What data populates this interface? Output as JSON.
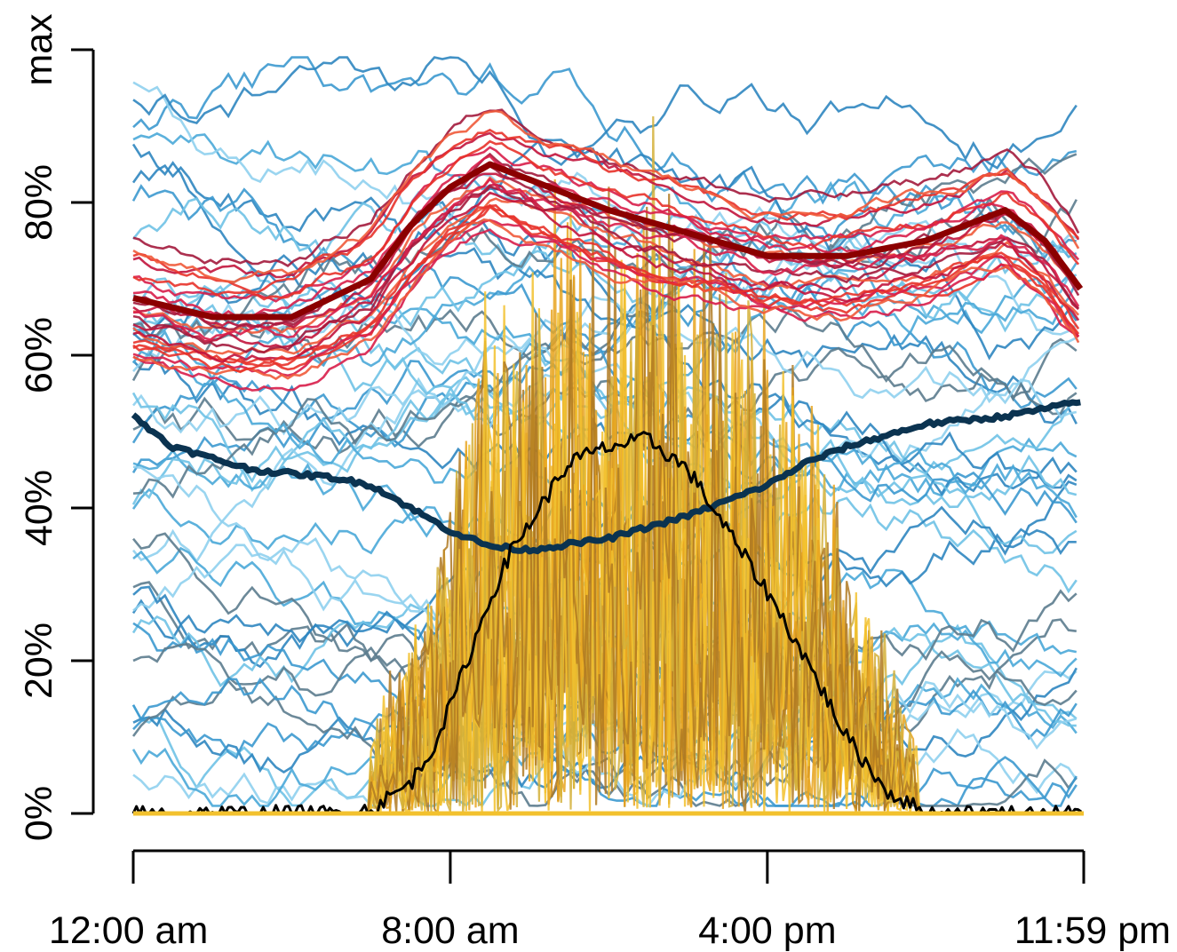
{
  "chart_data": {
    "type": "line",
    "xlim_hours": [
      0,
      23.983
    ],
    "ylim_percent": [
      0,
      100
    ],
    "y_ticks": [
      {
        "value": 0,
        "label": "0%"
      },
      {
        "value": 20,
        "label": "20%"
      },
      {
        "value": 40,
        "label": "40%"
      },
      {
        "value": 60,
        "label": "60%"
      },
      {
        "value": 80,
        "label": "80%"
      },
      {
        "value": 100,
        "label": "max"
      }
    ],
    "x_ticks": [
      {
        "value": 0,
        "label": "12:00 am"
      },
      {
        "value": 8,
        "label": "8:00 am"
      },
      {
        "value": 16,
        "label": "4:00 pm"
      },
      {
        "value": 23.983,
        "label": "11:59 pm"
      }
    ],
    "colors": {
      "red_mean": "#8b0000",
      "blue_mean": "#0b3350",
      "black_mean": "#000000",
      "yellow_group": "#f2c12e",
      "brown_group": "#b07a22",
      "red_group": [
        "#e8322a",
        "#d81e4a",
        "#c2143c",
        "#ef5a3a",
        "#a31a3c"
      ],
      "blue_group": [
        "#4aa8d8",
        "#2f86c0",
        "#6fc2e6",
        "#5c7c8e",
        "#3c99cf",
        "#8fd0ee"
      ]
    },
    "series": [
      {
        "id": "red-mean",
        "x": [
          0,
          2,
          4,
          6,
          7,
          8,
          9,
          10,
          12,
          14,
          16,
          18,
          20,
          21,
          22,
          23,
          24
        ],
        "y": [
          67.5,
          65,
          65,
          70,
          77,
          82,
          85,
          83,
          79,
          76,
          73,
          73,
          75,
          77,
          79,
          75,
          68
        ]
      },
      {
        "id": "blue-mean",
        "x": [
          0,
          1,
          3,
          5,
          6,
          7,
          8,
          9,
          10,
          12,
          14,
          15,
          16,
          17,
          18,
          20,
          22,
          24
        ],
        "y": [
          52,
          48,
          45,
          44,
          43,
          40,
          37,
          35,
          34.5,
          36,
          39,
          41,
          43,
          46,
          48,
          51,
          52,
          54
        ]
      },
      {
        "id": "black-mean",
        "x": [
          0,
          5,
          6,
          7,
          7.5,
          8,
          8.5,
          9,
          9.5,
          10,
          10.5,
          11,
          12,
          13,
          14,
          15,
          16,
          17,
          18,
          19,
          20,
          24
        ],
        "y": [
          0,
          0,
          0.5,
          4,
          8,
          14,
          21,
          28,
          34,
          38,
          42,
          46,
          48,
          49,
          45,
          37,
          29,
          20,
          10,
          3,
          0,
          0
        ]
      }
    ]
  }
}
